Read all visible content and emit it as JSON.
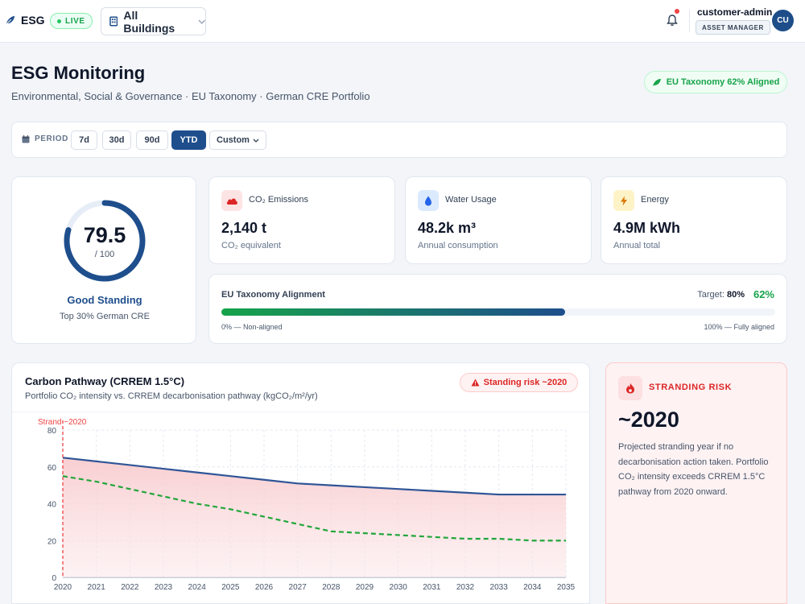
{
  "topbar": {
    "brand": "ESG",
    "live_label": "LIVE",
    "building_select": "All Buildings",
    "user_name": "customer-admin",
    "user_role": "ASSET MANAGER",
    "avatar_initials": "CU"
  },
  "header": {
    "title": "ESG Monitoring",
    "subtitle": "Environmental, Social & Governance · EU Taxonomy · German CRE Portfolio",
    "taxonomy_badge": "EU Taxonomy 62% Aligned"
  },
  "period": {
    "label": "PERIOD",
    "options": [
      "7d",
      "30d",
      "90d",
      "YTD"
    ],
    "selected": "YTD",
    "custom_label": "Custom"
  },
  "score": {
    "value": "79.5",
    "max_label": "/ 100",
    "fraction": 0.795,
    "status": "Good Standing",
    "rank": "Top 30% German CRE"
  },
  "metrics": [
    {
      "title": "CO₂ Emissions",
      "value": "2,140 t",
      "sub": "CO₂ equivalent",
      "icon": "cloud-icon",
      "accent": "#dc2626"
    },
    {
      "title": "Water Usage",
      "value": "48.2k m³",
      "sub": "Annual consumption",
      "icon": "water-drop-icon",
      "accent": "#2563eb"
    },
    {
      "title": "Energy",
      "value": "4.9M kWh",
      "sub": "Annual total",
      "icon": "lightning-icon",
      "accent": "#d97706"
    }
  ],
  "eu_taxonomy": {
    "title": "EU Taxonomy Alignment",
    "target_label": "Target:",
    "target_value": "80%",
    "current": "62%",
    "fraction": 0.62,
    "scale_left": "0% — Non-aligned",
    "scale_right": "100% — Fully aligned"
  },
  "carbon_chart": {
    "title": "Carbon Pathway (CRREM 1.5°C)",
    "subtitle": "Portfolio CO₂ intensity vs. CRREM decarbonisation pathway (kgCO₂/m²/yr)",
    "risk_pill": "Standing risk ~2020",
    "strand_marker": "Strand ~2020"
  },
  "chart_data": {
    "type": "line",
    "x": [
      2020,
      2021,
      2022,
      2023,
      2024,
      2025,
      2026,
      2027,
      2028,
      2029,
      2030,
      2031,
      2032,
      2033,
      2034,
      2035
    ],
    "ylim": [
      0,
      80
    ],
    "yticks": [
      0,
      20,
      40,
      60,
      80
    ],
    "grid": true,
    "series": [
      {
        "values": [
          65,
          63,
          61,
          59,
          57,
          55,
          53,
          51,
          50,
          49,
          48,
          47,
          46,
          45,
          45,
          45
        ],
        "color": "#2f5597",
        "style": "solid"
      },
      {
        "values": [
          55,
          52,
          48,
          44,
          40,
          37,
          33,
          29,
          25,
          24,
          23,
          22,
          21,
          21,
          20,
          20
        ],
        "color": "#22a63a",
        "style": "dashed"
      }
    ],
    "strand_year": 2020,
    "strand_label": "Strand ~2020"
  },
  "stranding": {
    "label": "STRANDING RISK",
    "year": "~2020",
    "description": "Projected stranding year if no decarbonisation action taken. Portfolio CO₂ intensity exceeds CRREM 1.5°C pathway from 2020 onward."
  }
}
